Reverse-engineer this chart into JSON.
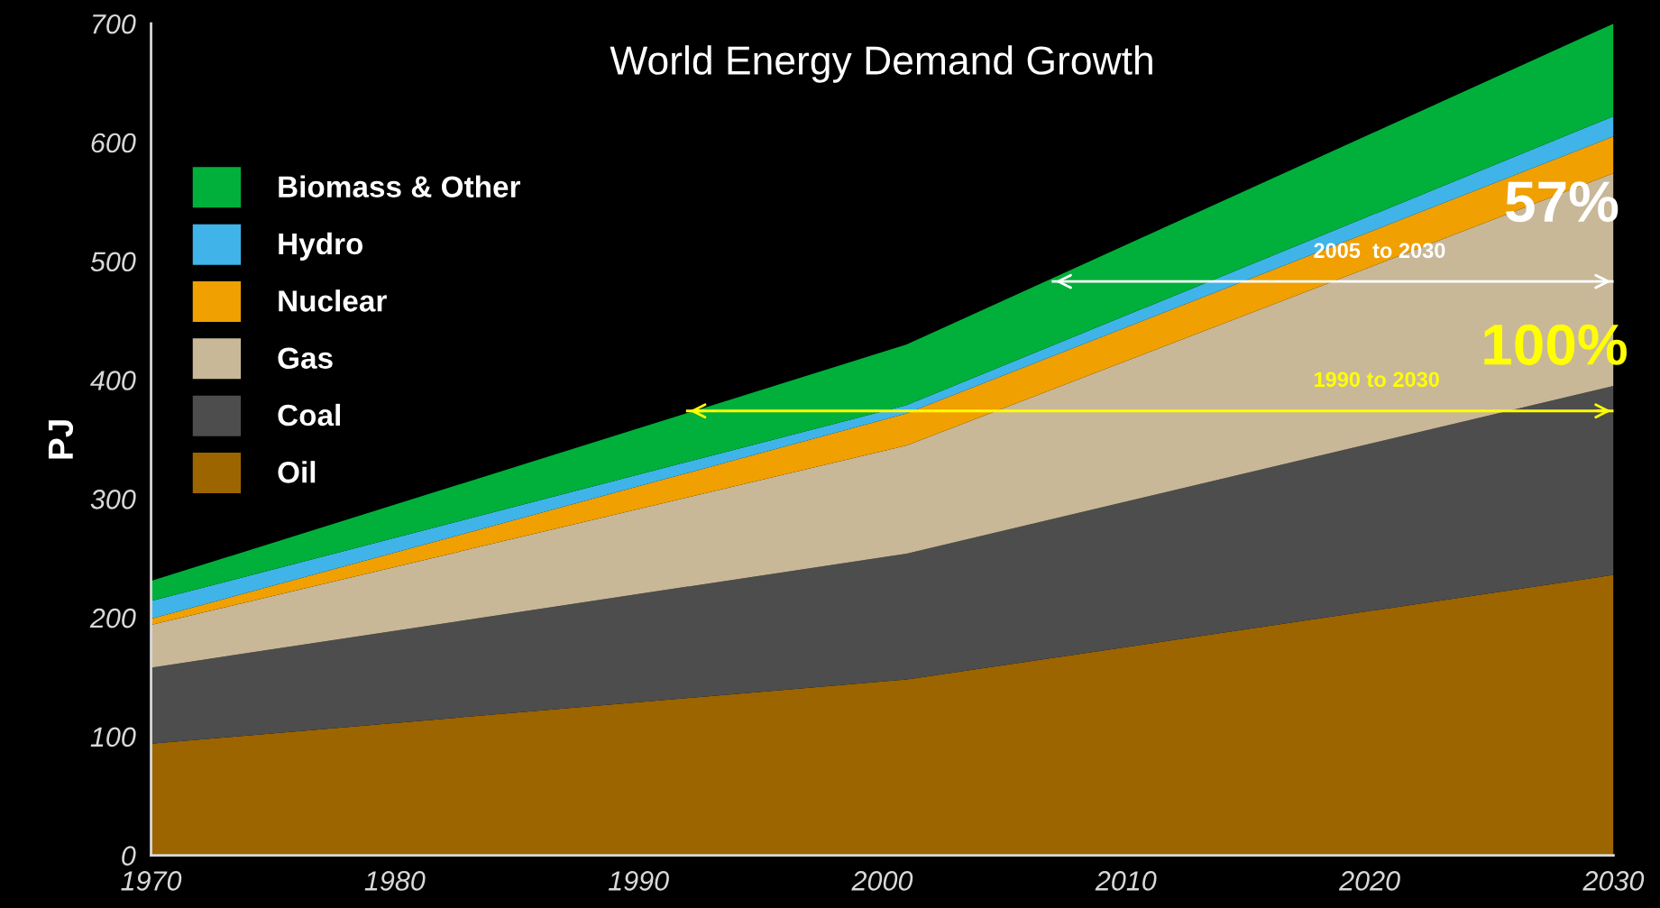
{
  "chart_data": {
    "type": "area",
    "stacked": true,
    "title": "World Energy Demand Growth",
    "ylabel": "PJ",
    "x": [
      1970,
      2001,
      2030
    ],
    "series": [
      {
        "name": "Oil",
        "color": "#9c6500",
        "values": [
          94,
          148,
          236
        ]
      },
      {
        "name": "Coal",
        "color": "#4d4d4d",
        "values": [
          64,
          106,
          159
        ]
      },
      {
        "name": "Gas",
        "color": "#c8b898",
        "values": [
          36,
          91,
          179
        ]
      },
      {
        "name": "Nuclear",
        "color": "#f0a000",
        "values": [
          5,
          27,
          31
        ]
      },
      {
        "name": "Hydro",
        "color": "#40b4e8",
        "values": [
          15,
          7,
          17
        ]
      },
      {
        "name": "Biomass & Other",
        "color": "#00b03a",
        "values": [
          17,
          51,
          78
        ]
      },
      {
        "type": "line",
        "color": "#ffffff",
        "x": [
          2007,
          2030
        ],
        "values": [
          483,
          483
        ]
      },
      {
        "type": "line",
        "color": "#ffff00",
        "x": [
          1992,
          2030
        ],
        "values": [
          374,
          374
        ]
      }
    ],
    "xlim": [
      1970,
      2030
    ],
    "ylim": [
      0,
      700
    ],
    "xticks": [
      1970,
      1980,
      1990,
      2000,
      2010,
      2020,
      2030
    ],
    "yticks": [
      0,
      100,
      200,
      300,
      400,
      500,
      600,
      700
    ],
    "grid": false,
    "legend": "top left",
    "annotations": [
      "57%",
      "2005  to 2030",
      "100%",
      "1990 to 2030"
    ]
  }
}
